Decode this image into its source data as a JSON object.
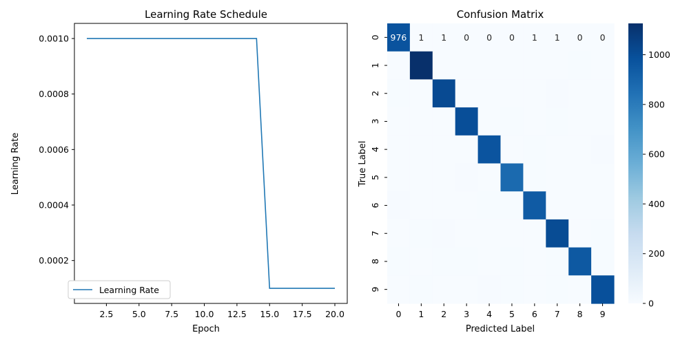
{
  "chart_data": [
    {
      "type": "line",
      "title": "Learning Rate Schedule",
      "xlabel": "Epoch",
      "ylabel": "Learning Rate",
      "xlim": [
        0.05,
        20.95
      ],
      "ylim": [
        4.55e-05,
        0.0010545
      ],
      "xticks": [
        2.5,
        5.0,
        7.5,
        10.0,
        12.5,
        15.0,
        17.5,
        20.0
      ],
      "xtick_labels": [
        "2.5",
        "5.0",
        "7.5",
        "10.0",
        "12.5",
        "15.0",
        "17.5",
        "20.0"
      ],
      "yticks": [
        0.0002,
        0.0004,
        0.0006,
        0.0008,
        0.001
      ],
      "ytick_labels": [
        "0.0002",
        "0.0004",
        "0.0006",
        "0.0008",
        "0.0010"
      ],
      "grid": false,
      "legend_position": "lower-left",
      "color": "#1f77b4",
      "series": [
        {
          "name": "Learning Rate",
          "x": [
            1,
            2,
            3,
            4,
            5,
            6,
            7,
            8,
            9,
            10,
            11,
            12,
            13,
            14,
            15,
            16,
            17,
            18,
            19,
            20
          ],
          "y": [
            0.001,
            0.001,
            0.001,
            0.001,
            0.001,
            0.001,
            0.001,
            0.001,
            0.001,
            0.001,
            0.001,
            0.001,
            0.001,
            0.001,
            0.0001,
            0.0001,
            0.0001,
            0.0001,
            0.0001,
            0.0001
          ]
        }
      ]
    },
    {
      "type": "heatmap",
      "title": "Confusion Matrix",
      "xlabel": "Predicted Label",
      "ylabel": "True Label",
      "x_categories": [
        "0",
        "1",
        "2",
        "3",
        "4",
        "5",
        "6",
        "7",
        "8",
        "9"
      ],
      "y_categories": [
        "0",
        "1",
        "2",
        "3",
        "4",
        "5",
        "6",
        "7",
        "8",
        "9"
      ],
      "colormap": "Blues",
      "vmin": 0,
      "vmax": 1126,
      "colorbar_ticks": [
        0,
        200,
        400,
        600,
        800,
        1000
      ],
      "colorbar_tick_labels": [
        "0",
        "200",
        "400",
        "600",
        "800",
        "1000"
      ],
      "annotated_rows": [
        0
      ],
      "matrix": [
        [
          976,
          1,
          1,
          0,
          0,
          0,
          1,
          1,
          0,
          0
        ],
        [
          0,
          1126,
          2,
          1,
          0,
          0,
          2,
          1,
          3,
          0
        ],
        [
          3,
          2,
          1015,
          1,
          2,
          0,
          1,
          6,
          2,
          0
        ],
        [
          0,
          0,
          2,
          998,
          0,
          4,
          0,
          3,
          2,
          1
        ],
        [
          1,
          0,
          1,
          0,
          970,
          0,
          3,
          1,
          0,
          6
        ],
        [
          2,
          0,
          0,
          7,
          0,
          876,
          3,
          1,
          2,
          1
        ],
        [
          6,
          2,
          1,
          0,
          3,
          3,
          941,
          0,
          2,
          0
        ],
        [
          1,
          3,
          8,
          2,
          1,
          0,
          0,
          1008,
          1,
          4
        ],
        [
          4,
          0,
          3,
          3,
          2,
          3,
          2,
          3,
          951,
          3
        ],
        [
          2,
          3,
          0,
          2,
          6,
          3,
          0,
          4,
          1,
          988
        ]
      ]
    }
  ]
}
